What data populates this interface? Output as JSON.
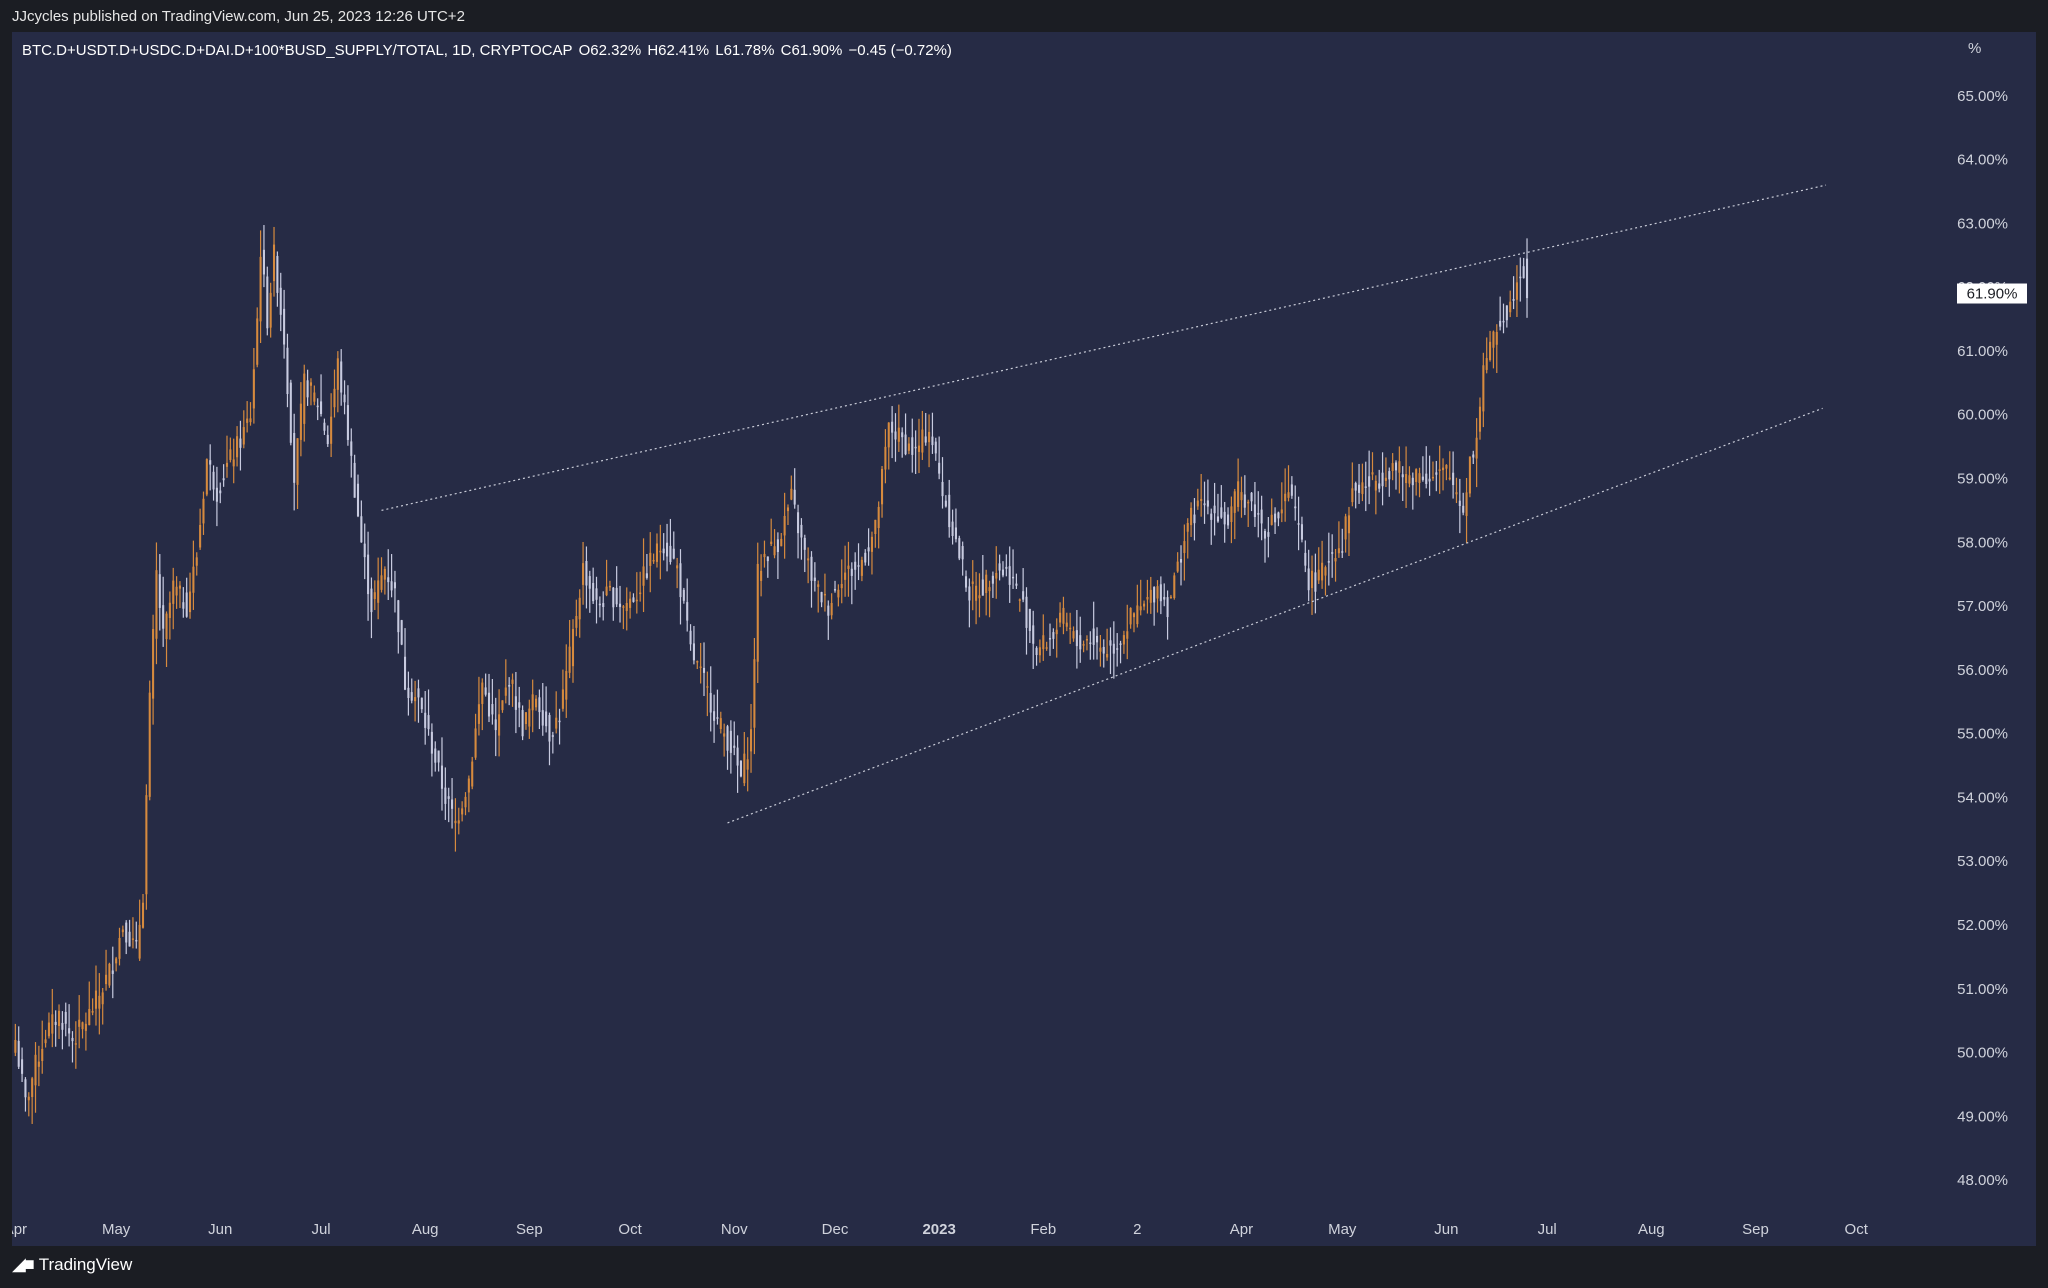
{
  "header": {
    "published_text": "JJcycles published on TradingView.com, Jun 25, 2023 12:26 UTC+2"
  },
  "symbol": {
    "name": "BTC.D+USDT.D+USDC.D+DAI.D+100*BUSD_SUPPLY/TOTAL, 1D, CRYPTOCAP",
    "open": "O62.32%",
    "high": "H62.41%",
    "low": "L61.78%",
    "close": "C61.90%",
    "change": "−0.45 (−0.72%)"
  },
  "axis_unit": "%",
  "footer": {
    "logo_icon": "tradingview-logo-icon",
    "brand": "TradingView"
  },
  "colors": {
    "background": "#262b45",
    "up_candle": "#d68a3e",
    "down_candle": "#c8cbe0",
    "trendline": "#c9ccd8",
    "price_label_bg": "#ffffff"
  },
  "chart_data": {
    "type": "candlestick",
    "title": "",
    "xlabel": "",
    "ylabel": "%",
    "ylim": [
      47.5,
      66.0
    ],
    "yticks": [
      "48.00%",
      "49.00%",
      "50.00%",
      "51.00%",
      "52.00%",
      "53.00%",
      "54.00%",
      "55.00%",
      "56.00%",
      "57.00%",
      "58.00%",
      "59.00%",
      "60.00%",
      "61.00%",
      "62.00%",
      "63.00%",
      "64.00%",
      "65.00%"
    ],
    "xlim": [
      "2022-03-31",
      "2023-10-31"
    ],
    "xticks": [
      {
        "date": "2022-04-01",
        "label": "Apr"
      },
      {
        "date": "2022-05-01",
        "label": "May"
      },
      {
        "date": "2022-06-01",
        "label": "Jun"
      },
      {
        "date": "2022-07-01",
        "label": "Jul"
      },
      {
        "date": "2022-08-01",
        "label": "Aug"
      },
      {
        "date": "2022-09-01",
        "label": "Sep"
      },
      {
        "date": "2022-10-01",
        "label": "Oct"
      },
      {
        "date": "2022-11-01",
        "label": "Nov"
      },
      {
        "date": "2022-12-01",
        "label": "Dec"
      },
      {
        "date": "2023-01-01",
        "label": "2023"
      },
      {
        "date": "2023-02-01",
        "label": "Feb"
      },
      {
        "date": "2023-03-01",
        "label": "2"
      },
      {
        "date": "2023-04-01",
        "label": "Apr"
      },
      {
        "date": "2023-05-01",
        "label": "May"
      },
      {
        "date": "2023-06-01",
        "label": "Jun"
      },
      {
        "date": "2023-07-01",
        "label": "Jul"
      },
      {
        "date": "2023-08-01",
        "label": "Aug"
      },
      {
        "date": "2023-09-01",
        "label": "Sep"
      },
      {
        "date": "2023-10-01",
        "label": "Oct"
      }
    ],
    "last_price_label": "61.90%",
    "last_price": 61.9,
    "close_path": [
      [
        "2022-04-01",
        50.2
      ],
      [
        "2022-04-04",
        49.2
      ],
      [
        "2022-04-07",
        49.8
      ],
      [
        "2022-04-10",
        50.3
      ],
      [
        "2022-04-14",
        50.6
      ],
      [
        "2022-04-18",
        50.2
      ],
      [
        "2022-04-22",
        50.5
      ],
      [
        "2022-04-26",
        50.9
      ],
      [
        "2022-04-30",
        51.4
      ],
      [
        "2022-05-03",
        52.0
      ],
      [
        "2022-05-07",
        51.6
      ],
      [
        "2022-05-09",
        52.5
      ],
      [
        "2022-05-11",
        55.5
      ],
      [
        "2022-05-13",
        57.5
      ],
      [
        "2022-05-15",
        56.5
      ],
      [
        "2022-05-18",
        57.3
      ],
      [
        "2022-05-22",
        57.0
      ],
      [
        "2022-05-25",
        57.8
      ],
      [
        "2022-05-28",
        59.3
      ],
      [
        "2022-05-31",
        58.8
      ],
      [
        "2022-06-03",
        59.2
      ],
      [
        "2022-06-07",
        59.6
      ],
      [
        "2022-06-10",
        60.0
      ],
      [
        "2022-06-12",
        61.5
      ],
      [
        "2022-06-13",
        62.6
      ],
      [
        "2022-06-15",
        61.5
      ],
      [
        "2022-06-17",
        62.5
      ],
      [
        "2022-06-20",
        61.2
      ],
      [
        "2022-06-23",
        59.0
      ],
      [
        "2022-06-26",
        60.5
      ],
      [
        "2022-06-30",
        60.2
      ],
      [
        "2022-07-03",
        59.6
      ],
      [
        "2022-07-06",
        60.8
      ],
      [
        "2022-07-09",
        59.7
      ],
      [
        "2022-07-13",
        58.0
      ],
      [
        "2022-07-16",
        57.0
      ],
      [
        "2022-07-20",
        57.6
      ],
      [
        "2022-07-23",
        57.2
      ],
      [
        "2022-07-26",
        55.8
      ],
      [
        "2022-07-30",
        55.5
      ],
      [
        "2022-08-03",
        54.8
      ],
      [
        "2022-08-07",
        54.0
      ],
      [
        "2022-08-10",
        53.6
      ],
      [
        "2022-08-14",
        54.3
      ],
      [
        "2022-08-18",
        55.8
      ],
      [
        "2022-08-22",
        55.0
      ],
      [
        "2022-08-26",
        55.9
      ],
      [
        "2022-08-30",
        55.1
      ],
      [
        "2022-09-03",
        55.6
      ],
      [
        "2022-09-07",
        55.0
      ],
      [
        "2022-09-10",
        55.3
      ],
      [
        "2022-09-13",
        56.2
      ],
      [
        "2022-09-17",
        57.6
      ],
      [
        "2022-09-21",
        57.0
      ],
      [
        "2022-09-25",
        57.2
      ],
      [
        "2022-09-29",
        57.0
      ],
      [
        "2022-10-03",
        57.2
      ],
      [
        "2022-10-07",
        57.7
      ],
      [
        "2022-10-11",
        58.0
      ],
      [
        "2022-10-15",
        57.6
      ],
      [
        "2022-10-19",
        56.3
      ],
      [
        "2022-10-23",
        55.8
      ],
      [
        "2022-10-27",
        55.2
      ],
      [
        "2022-10-31",
        54.8
      ],
      [
        "2022-11-03",
        54.3
      ],
      [
        "2022-11-06",
        55.0
      ],
      [
        "2022-11-08",
        57.5
      ],
      [
        "2022-11-10",
        57.8
      ],
      [
        "2022-11-14",
        58.0
      ],
      [
        "2022-11-18",
        58.7
      ],
      [
        "2022-11-21",
        58.0
      ],
      [
        "2022-11-25",
        57.3
      ],
      [
        "2022-11-29",
        57.0
      ],
      [
        "2022-12-03",
        57.5
      ],
      [
        "2022-12-08",
        57.6
      ],
      [
        "2022-12-13",
        58.2
      ],
      [
        "2022-12-17",
        59.8
      ],
      [
        "2022-12-21",
        59.6
      ],
      [
        "2022-12-25",
        59.4
      ],
      [
        "2022-12-29",
        59.8
      ],
      [
        "2023-01-02",
        58.8
      ],
      [
        "2023-01-06",
        58.0
      ],
      [
        "2023-01-10",
        57.2
      ],
      [
        "2023-01-14",
        57.3
      ],
      [
        "2023-01-18",
        57.6
      ],
      [
        "2023-01-22",
        57.5
      ],
      [
        "2023-01-26",
        57.0
      ],
      [
        "2023-01-30",
        56.3
      ],
      [
        "2023-02-03",
        56.5
      ],
      [
        "2023-02-07",
        56.8
      ],
      [
        "2023-02-11",
        56.4
      ],
      [
        "2023-02-15",
        56.5
      ],
      [
        "2023-02-19",
        56.3
      ],
      [
        "2023-02-23",
        56.4
      ],
      [
        "2023-02-27",
        56.8
      ],
      [
        "2023-03-03",
        57.0
      ],
      [
        "2023-03-07",
        57.3
      ],
      [
        "2023-03-10",
        57.0
      ],
      [
        "2023-03-13",
        57.6
      ],
      [
        "2023-03-16",
        58.3
      ],
      [
        "2023-03-20",
        58.6
      ],
      [
        "2023-03-24",
        58.5
      ],
      [
        "2023-03-28",
        58.3
      ],
      [
        "2023-03-31",
        58.8
      ],
      [
        "2023-04-04",
        58.6
      ],
      [
        "2023-04-08",
        58.2
      ],
      [
        "2023-04-12",
        58.4
      ],
      [
        "2023-04-15",
        58.8
      ],
      [
        "2023-04-18",
        58.2
      ],
      [
        "2023-04-21",
        57.4
      ],
      [
        "2023-04-24",
        57.4
      ],
      [
        "2023-04-27",
        57.8
      ],
      [
        "2023-05-01",
        58.0
      ],
      [
        "2023-05-04",
        58.8
      ],
      [
        "2023-05-08",
        58.9
      ],
      [
        "2023-05-12",
        59.0
      ],
      [
        "2023-05-16",
        59.2
      ],
      [
        "2023-05-20",
        59.0
      ],
      [
        "2023-05-24",
        59.1
      ],
      [
        "2023-05-28",
        59.0
      ],
      [
        "2023-06-01",
        59.1
      ],
      [
        "2023-06-04",
        58.8
      ],
      [
        "2023-06-06",
        58.5
      ],
      [
        "2023-06-08",
        59.3
      ],
      [
        "2023-06-10",
        59.6
      ],
      [
        "2023-06-12",
        60.8
      ],
      [
        "2023-06-14",
        61.0
      ],
      [
        "2023-06-17",
        61.5
      ],
      [
        "2023-06-20",
        61.7
      ],
      [
        "2023-06-22",
        62.2
      ],
      [
        "2023-06-24",
        62.3
      ],
      [
        "2023-06-25",
        61.9
      ]
    ],
    "trendlines": [
      {
        "name": "upper",
        "from": [
          "2022-07-19",
          58.5
        ],
        "to": [
          "2023-09-22",
          63.6
        ]
      },
      {
        "name": "lower",
        "from": [
          "2022-10-30",
          53.6
        ],
        "to": [
          "2023-09-21",
          60.1
        ]
      }
    ]
  }
}
